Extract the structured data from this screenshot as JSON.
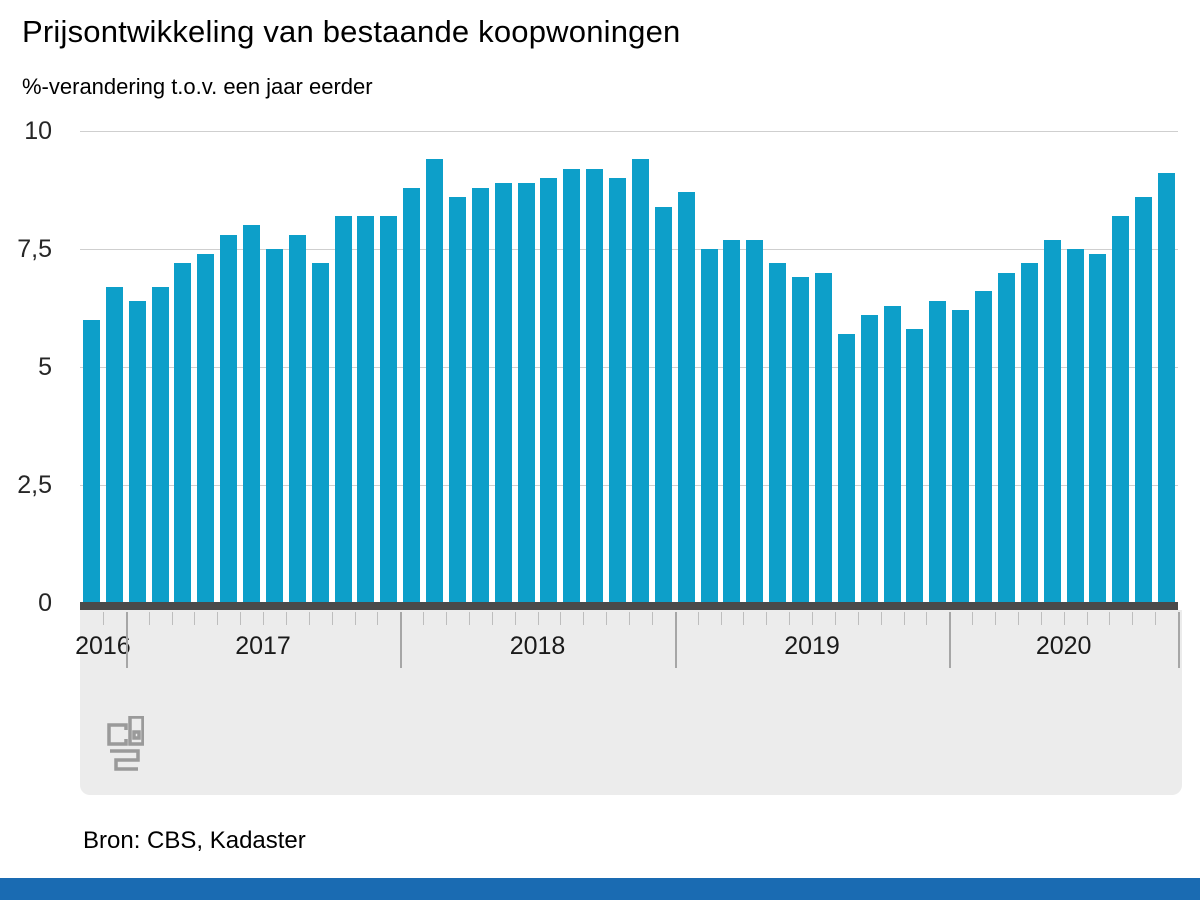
{
  "header": {
    "title": "Prijsontwikkeling van bestaande koopwoningen",
    "subtitle": "%-verandering t.o.v. een jaar eerder"
  },
  "footer": {
    "source": "Bron: CBS, Kadaster",
    "accent_bar_color": "#1a6bb2"
  },
  "logo": {
    "name": "cbs-logo",
    "color": "#9a9a9a"
  },
  "chart_data": {
    "type": "bar",
    "title": "Prijsontwikkeling van bestaande koopwoningen",
    "subtitle": "%-verandering t.o.v. een jaar eerder",
    "unit": "%",
    "bar_color": "#0d9fc9",
    "grid": true,
    "ylim": [
      0,
      10
    ],
    "yticks": [
      0,
      2.5,
      5,
      7.5,
      10
    ],
    "ytick_labels": [
      "0",
      "2,5",
      "5",
      "7,5",
      "10"
    ],
    "gridline_values": [
      2.5,
      5,
      7.5,
      10
    ],
    "years": [
      {
        "label": "2016",
        "months": 2
      },
      {
        "label": "2017",
        "months": 12
      },
      {
        "label": "2018",
        "months": 12
      },
      {
        "label": "2019",
        "months": 12
      },
      {
        "label": "2020",
        "months": 10
      }
    ],
    "x": [
      "2016-11",
      "2016-12",
      "2017-01",
      "2017-02",
      "2017-03",
      "2017-04",
      "2017-05",
      "2017-06",
      "2017-07",
      "2017-08",
      "2017-09",
      "2017-10",
      "2017-11",
      "2017-12",
      "2018-01",
      "2018-02",
      "2018-03",
      "2018-04",
      "2018-05",
      "2018-06",
      "2018-07",
      "2018-08",
      "2018-09",
      "2018-10",
      "2018-11",
      "2018-12",
      "2019-01",
      "2019-02",
      "2019-03",
      "2019-04",
      "2019-05",
      "2019-06",
      "2019-07",
      "2019-08",
      "2019-09",
      "2019-10",
      "2019-11",
      "2019-12",
      "2020-01",
      "2020-02",
      "2020-03",
      "2020-04",
      "2020-05",
      "2020-06",
      "2020-07",
      "2020-08",
      "2020-09",
      "2020-10"
    ],
    "values": [
      6.0,
      6.7,
      6.4,
      6.7,
      7.2,
      7.4,
      7.8,
      8.0,
      7.5,
      7.8,
      7.2,
      8.2,
      8.2,
      8.2,
      8.8,
      9.4,
      8.6,
      8.8,
      8.9,
      8.9,
      9.0,
      9.2,
      9.2,
      9.0,
      9.4,
      8.4,
      8.7,
      7.5,
      7.7,
      7.7,
      7.2,
      6.9,
      7.0,
      5.7,
      6.1,
      6.3,
      5.8,
      6.4,
      6.2,
      6.6,
      7.0,
      7.2,
      7.7,
      7.5,
      7.4,
      8.2,
      8.6,
      9.1
    ]
  }
}
